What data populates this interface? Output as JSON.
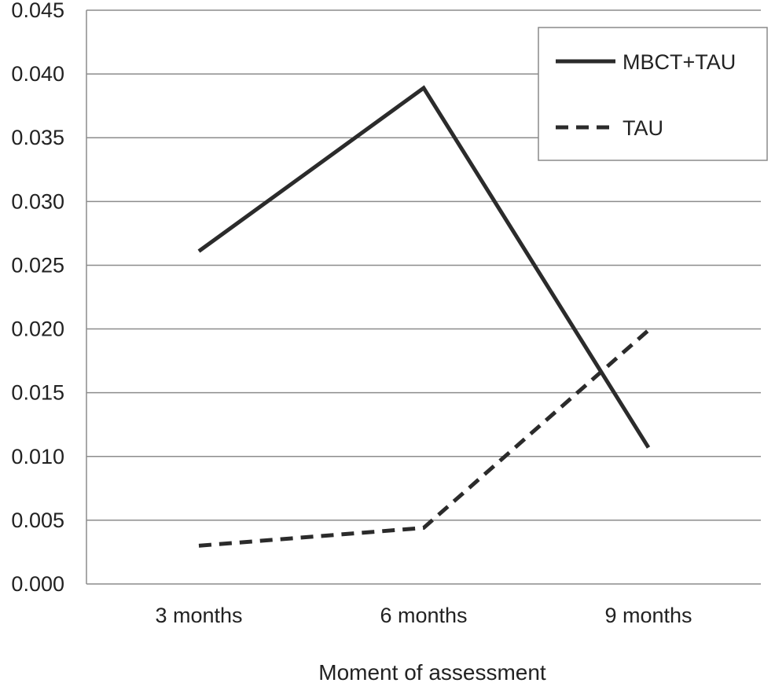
{
  "chart_data": {
    "type": "line",
    "title": "",
    "xlabel": "Moment of assessment",
    "ylabel": "",
    "categories": [
      "3 months",
      "6 months",
      "9 months"
    ],
    "ylim": [
      0,
      0.045
    ],
    "yticks": [
      "0.000",
      "0.005",
      "0.010",
      "0.015",
      "0.020",
      "0.025",
      "0.030",
      "0.035",
      "0.040",
      "0.045"
    ],
    "grid": "horizontal",
    "legend_position": "top-right",
    "series": [
      {
        "name": "MBCT+TAU",
        "values": [
          0.0261,
          0.0389,
          0.0107
        ],
        "style": "solid",
        "color": "#2b2b2b"
      },
      {
        "name": "TAU",
        "values": [
          0.003,
          0.0044,
          0.0199
        ],
        "style": "dashed",
        "color": "#2b2b2b"
      }
    ]
  }
}
